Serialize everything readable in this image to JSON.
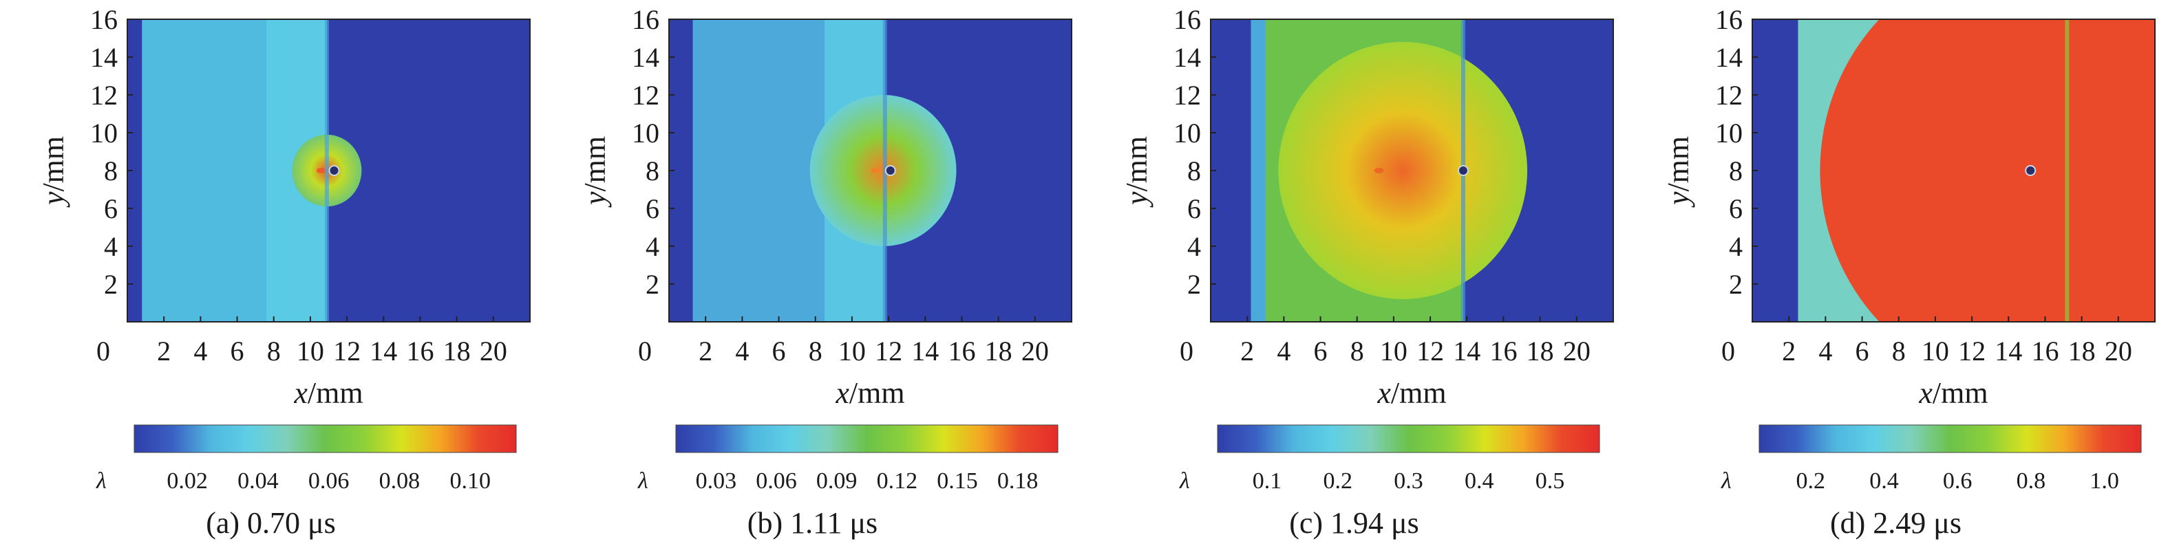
{
  "colormap": [
    "#2f3ea8",
    "#3a60c4",
    "#4fb7de",
    "#5fcfe6",
    "#7ed0b8",
    "#6cc24a",
    "#8dd03a",
    "#d8e21e",
    "#f4a722",
    "#ea4a2a",
    "#e42c2a"
  ],
  "charts": [
    {
      "caption": "(a) 0.70 μs",
      "type": "heatmap",
      "xlabel_var": "x",
      "xlabel_unit": "/mm",
      "ylabel_var": "y",
      "ylabel_unit": "/mm",
      "origin_label": "0",
      "xticks": [
        "2",
        "4",
        "6",
        "8",
        "10",
        "12",
        "14",
        "16",
        "18",
        "20"
      ],
      "yticks": [
        "2",
        "4",
        "6",
        "8",
        "10",
        "12",
        "14",
        "16"
      ],
      "xlim": [
        0,
        22
      ],
      "ylim": [
        0,
        16
      ],
      "colorbar_symbol": "λ",
      "colorbar_ticks": [
        "0.02",
        "0.04",
        "0.06",
        "0.08",
        "0.10"
      ],
      "colorbar_tick_values": [
        0.02,
        0.04,
        0.06,
        0.08,
        0.1
      ],
      "colorbar_range": [
        0.005,
        0.113
      ],
      "field": {
        "background": 0.005,
        "left_edge_end_x": 0.8,
        "shocked_end_x": 10.9,
        "shocked_value": 0.028,
        "band_start_x": 7.6,
        "band_value": 0.035,
        "bubble_center_x": 10.9,
        "bubble_center_y": 8,
        "bubble_radius": 1.9,
        "bubble_value": 0.055,
        "hotspot_x": 10.6,
        "hotspot_y": 8,
        "hotspot_value": 0.1,
        "particle_x": 11.3,
        "particle_y": 8
      }
    },
    {
      "caption": "(b) 1.11 μs",
      "type": "heatmap",
      "xlabel_var": "x",
      "xlabel_unit": "/mm",
      "ylabel_var": "y",
      "ylabel_unit": "/mm",
      "origin_label": "0",
      "xticks": [
        "2",
        "4",
        "6",
        "8",
        "10",
        "12",
        "14",
        "16",
        "18",
        "20"
      ],
      "yticks": [
        "2",
        "4",
        "6",
        "8",
        "10",
        "12",
        "14",
        "16"
      ],
      "xlim": [
        0,
        22
      ],
      "ylim": [
        0,
        16
      ],
      "colorbar_symbol": "λ",
      "colorbar_ticks": [
        "0.03",
        "0.06",
        "0.09",
        "0.12",
        "0.15",
        "0.18"
      ],
      "colorbar_tick_values": [
        0.03,
        0.06,
        0.09,
        0.12,
        0.15,
        0.18
      ],
      "colorbar_range": [
        0.01,
        0.2
      ],
      "field": {
        "background": 0.01,
        "left_edge_end_x": 1.3,
        "shocked_end_x": 11.8,
        "shocked_value": 0.045,
        "band_start_x": 8.5,
        "band_value": 0.06,
        "bubble_center_x": 11.7,
        "bubble_center_y": 8,
        "bubble_radius": 4.0,
        "bubble_value": 0.075,
        "hotspot_x": 11.3,
        "hotspot_y": 8,
        "hotspot_value": 0.17,
        "particle_x": 12.1,
        "particle_y": 8
      }
    },
    {
      "caption": "(c) 1.94 μs",
      "type": "heatmap",
      "xlabel_var": "x",
      "xlabel_unit": "/mm",
      "ylabel_var": "y",
      "ylabel_unit": "/mm",
      "origin_label": "0",
      "xticks": [
        "2",
        "4",
        "6",
        "8",
        "10",
        "12",
        "14",
        "16",
        "18",
        "20"
      ],
      "yticks": [
        "2",
        "4",
        "6",
        "8",
        "10",
        "12",
        "14",
        "16"
      ],
      "xlim": [
        0,
        22
      ],
      "ylim": [
        0,
        16
      ],
      "colorbar_symbol": "λ",
      "colorbar_ticks": [
        "0.1",
        "0.2",
        "0.3",
        "0.4",
        "0.5"
      ],
      "colorbar_tick_values": [
        0.1,
        0.2,
        0.3,
        0.4,
        0.5
      ],
      "colorbar_range": [
        0.03,
        0.57
      ],
      "field": {
        "background": 0.03,
        "left_edge_end_x": 2.2,
        "shocked_end_x": 13.8,
        "shocked_value": 0.13,
        "band_start_x": 3.0,
        "band_value": 0.3,
        "bubble_center_x": 10.5,
        "bubble_center_y": 8,
        "bubble_radius": 6.8,
        "bubble_value": 0.37,
        "hotspot_x": 9.2,
        "hotspot_y": 8,
        "hotspot_value": 0.5,
        "particle_x": 13.8,
        "particle_y": 8
      }
    },
    {
      "caption": "(d) 2.49 μs",
      "type": "heatmap",
      "xlabel_var": "x",
      "xlabel_unit": "/mm",
      "ylabel_var": "y",
      "ylabel_unit": "/mm",
      "origin_label": "0",
      "xticks": [
        "2",
        "4",
        "6",
        "8",
        "10",
        "12",
        "14",
        "16",
        "18",
        "20"
      ],
      "yticks": [
        "2",
        "4",
        "6",
        "8",
        "10",
        "12",
        "14",
        "16"
      ],
      "xlim": [
        0,
        22
      ],
      "ylim": [
        0,
        16
      ],
      "colorbar_symbol": "λ",
      "colorbar_ticks": [
        "0.2",
        "0.4",
        "0.6",
        "0.8",
        "1.0"
      ],
      "colorbar_tick_values": [
        0.2,
        0.4,
        0.6,
        0.8,
        1.0
      ],
      "colorbar_range": [
        0.06,
        1.1
      ],
      "field": {
        "background": 0.06,
        "left_edge_end_x": 2.5,
        "shocked_end_x": 17.2,
        "shocked_value": 1.0,
        "band_start_x": 2.5,
        "band_value": 0.45,
        "bubble_center_x": 15.2,
        "bubble_center_y": 8,
        "bubble_radius": 11.5,
        "bubble_value": 1.0,
        "hotspot_x": 15.2,
        "hotspot_y": 8,
        "hotspot_value": 1.0,
        "particle_x": 15.2,
        "particle_y": 8
      }
    }
  ]
}
